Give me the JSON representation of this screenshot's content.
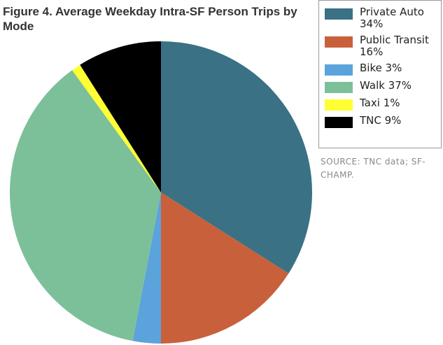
{
  "chart_data": {
    "type": "pie",
    "title": "Figure 4. Average Weekday Intra-SF Person Trips by Mode",
    "categories": [
      "Private Auto",
      "Public Transit",
      "Bike",
      "Walk",
      "Taxi",
      "TNC"
    ],
    "values": [
      34,
      16,
      3,
      37,
      1,
      9
    ],
    "value_labels": [
      "34%",
      "16%",
      "3%",
      "37%",
      "1%",
      "9%"
    ],
    "colors": [
      "#3a7185",
      "#c9603c",
      "#5ba3db",
      "#7cc09a",
      "#ffff33",
      "#000000"
    ],
    "source": "SOURCE: TNC data; SF-CHAMP."
  }
}
